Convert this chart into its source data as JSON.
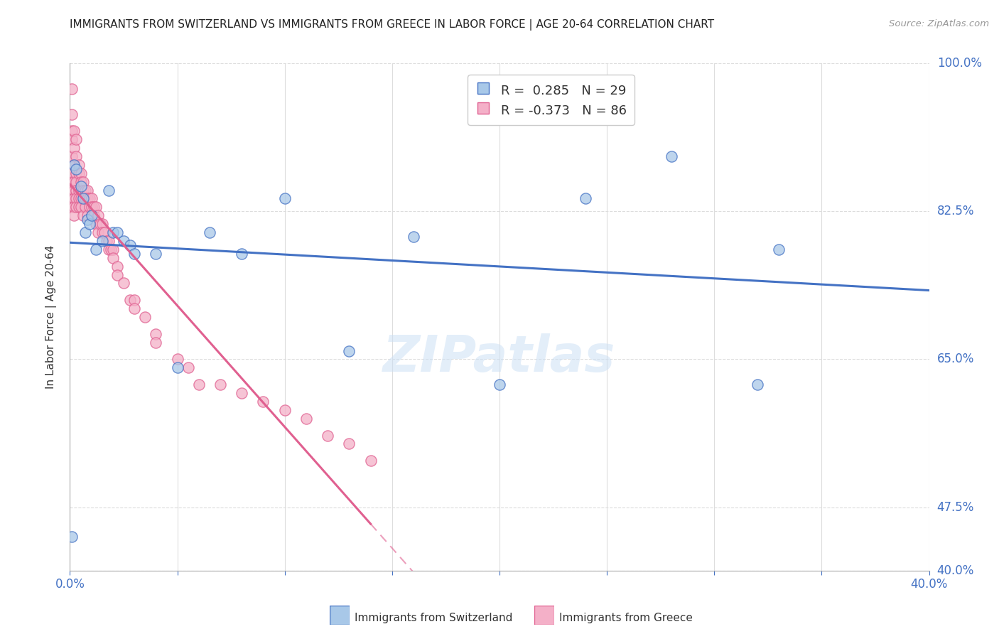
{
  "title": "IMMIGRANTS FROM SWITZERLAND VS IMMIGRANTS FROM GREECE IN LABOR FORCE | AGE 20-64 CORRELATION CHART",
  "source": "Source: ZipAtlas.com",
  "xmin": 0.0,
  "xmax": 0.4,
  "ymin": 0.4,
  "ymax": 1.0,
  "r_switzerland": 0.285,
  "n_switzerland": 29,
  "r_greece": -0.373,
  "n_greece": 86,
  "color_switzerland": "#a8c8e8",
  "color_greece": "#f4b0c8",
  "line_color_switzerland": "#4472c4",
  "line_color_greece": "#e06090",
  "watermark": "ZIPatlas",
  "switzerland_x": [
    0.001,
    0.002,
    0.003,
    0.005,
    0.006,
    0.007,
    0.008,
    0.009,
    0.01,
    0.012,
    0.015,
    0.018,
    0.02,
    0.022,
    0.025,
    0.028,
    0.03,
    0.04,
    0.05,
    0.065,
    0.08,
    0.1,
    0.13,
    0.16,
    0.2,
    0.24,
    0.28,
    0.32,
    0.33
  ],
  "switzerland_y": [
    0.44,
    0.88,
    0.875,
    0.855,
    0.84,
    0.8,
    0.815,
    0.81,
    0.82,
    0.78,
    0.79,
    0.85,
    0.8,
    0.8,
    0.79,
    0.785,
    0.775,
    0.775,
    0.64,
    0.8,
    0.775,
    0.84,
    0.66,
    0.795,
    0.62,
    0.84,
    0.89,
    0.62,
    0.78
  ],
  "greece_x": [
    0.001,
    0.001,
    0.001,
    0.001,
    0.001,
    0.001,
    0.001,
    0.001,
    0.001,
    0.001,
    0.002,
    0.002,
    0.002,
    0.002,
    0.002,
    0.002,
    0.002,
    0.002,
    0.003,
    0.003,
    0.003,
    0.003,
    0.003,
    0.003,
    0.003,
    0.004,
    0.004,
    0.004,
    0.004,
    0.004,
    0.005,
    0.005,
    0.005,
    0.005,
    0.005,
    0.006,
    0.006,
    0.006,
    0.006,
    0.007,
    0.007,
    0.007,
    0.008,
    0.008,
    0.008,
    0.009,
    0.009,
    0.01,
    0.01,
    0.01,
    0.011,
    0.011,
    0.012,
    0.012,
    0.013,
    0.013,
    0.014,
    0.015,
    0.015,
    0.016,
    0.017,
    0.018,
    0.018,
    0.019,
    0.02,
    0.02,
    0.022,
    0.022,
    0.025,
    0.028,
    0.03,
    0.03,
    0.035,
    0.04,
    0.04,
    0.05,
    0.055,
    0.06,
    0.07,
    0.08,
    0.09,
    0.1,
    0.11,
    0.12,
    0.13,
    0.14
  ],
  "greece_y": [
    0.97,
    0.94,
    0.92,
    0.91,
    0.89,
    0.87,
    0.86,
    0.85,
    0.84,
    0.83,
    0.92,
    0.9,
    0.88,
    0.86,
    0.85,
    0.84,
    0.83,
    0.82,
    0.91,
    0.89,
    0.87,
    0.86,
    0.85,
    0.84,
    0.83,
    0.88,
    0.87,
    0.85,
    0.84,
    0.83,
    0.87,
    0.86,
    0.85,
    0.84,
    0.83,
    0.86,
    0.85,
    0.84,
    0.82,
    0.85,
    0.84,
    0.83,
    0.85,
    0.84,
    0.82,
    0.84,
    0.83,
    0.84,
    0.83,
    0.82,
    0.83,
    0.82,
    0.83,
    0.81,
    0.82,
    0.8,
    0.81,
    0.81,
    0.8,
    0.8,
    0.79,
    0.79,
    0.78,
    0.78,
    0.78,
    0.77,
    0.76,
    0.75,
    0.74,
    0.72,
    0.72,
    0.71,
    0.7,
    0.68,
    0.67,
    0.65,
    0.64,
    0.62,
    0.62,
    0.61,
    0.6,
    0.59,
    0.58,
    0.56,
    0.55,
    0.53
  ],
  "grid_color": "#dddddd",
  "yticks": [
    1.0,
    0.825,
    0.65,
    0.475,
    0.4
  ],
  "ytick_labels": [
    "100.0%",
    "82.5%",
    "65.0%",
    "47.5%",
    "40.0%"
  ],
  "xtick_positions": [
    0.0,
    0.05,
    0.1,
    0.15,
    0.2,
    0.25,
    0.3,
    0.35,
    0.4
  ]
}
